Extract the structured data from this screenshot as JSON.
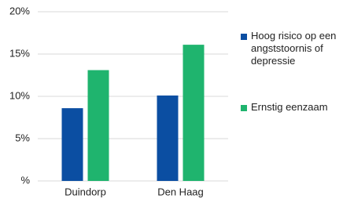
{
  "chart_data": {
    "type": "bar",
    "categories": [
      "Duindorp",
      "Den Haag"
    ],
    "series": [
      {
        "name": "Hoog risico op een angststoornis of depressie",
        "color": "#0b4ea2",
        "values": [
          8.6,
          10.1
        ]
      },
      {
        "name": "Ernstig eenzaam",
        "color": "#1fb46e",
        "values": [
          13.1,
          16.1
        ]
      }
    ],
    "ylim": [
      0,
      20
    ],
    "yticks": [
      {
        "value": 0,
        "label": "%"
      },
      {
        "value": 5,
        "label": "5%"
      },
      {
        "value": 10,
        "label": "10%"
      },
      {
        "value": 15,
        "label": "15%"
      },
      {
        "value": 20,
        "label": "20%"
      }
    ],
    "grid": true
  }
}
